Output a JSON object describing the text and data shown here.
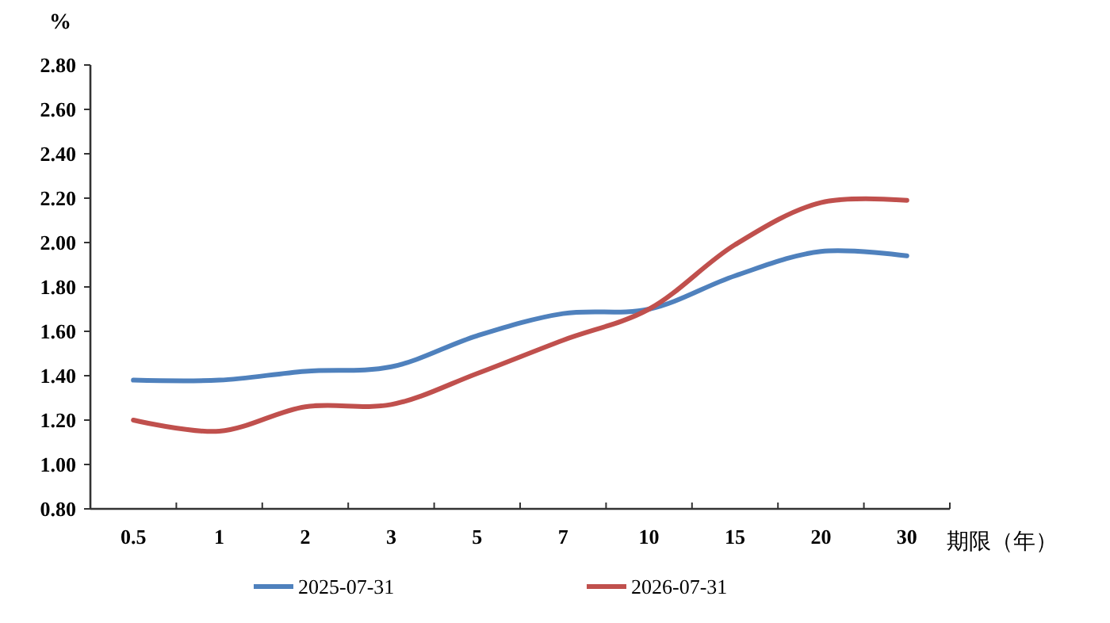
{
  "chart_data": {
    "type": "line",
    "ylabel": "%",
    "xlabel": "期限（年）",
    "categories": [
      "0.5",
      "1",
      "2",
      "3",
      "5",
      "7",
      "10",
      "15",
      "20",
      "30"
    ],
    "series": [
      {
        "name": "2025-07-31",
        "color": "#4f81bd",
        "values": [
          1.38,
          1.38,
          1.42,
          1.44,
          1.58,
          1.68,
          1.7,
          1.85,
          1.96,
          1.94
        ]
      },
      {
        "name": "2026-07-31",
        "color": "#c0504d",
        "values": [
          1.2,
          1.15,
          1.26,
          1.27,
          1.41,
          1.56,
          1.7,
          1.99,
          2.18,
          2.19
        ]
      }
    ],
    "ylim": [
      0.8,
      2.8
    ],
    "yticks": [
      {
        "value": 0.8,
        "label": "0.80"
      },
      {
        "value": 1.0,
        "label": "1.00"
      },
      {
        "value": 1.2,
        "label": "1.20"
      },
      {
        "value": 1.4,
        "label": "1.40"
      },
      {
        "value": 1.6,
        "label": "1.60"
      },
      {
        "value": 1.8,
        "label": "1.80"
      },
      {
        "value": 2.0,
        "label": "2.00"
      },
      {
        "value": 2.2,
        "label": "2.20"
      },
      {
        "value": 2.4,
        "label": "2.40"
      },
      {
        "value": 2.6,
        "label": "2.60"
      },
      {
        "value": 2.8,
        "label": "2.80"
      }
    ],
    "grid": false,
    "legend": "bottom",
    "marker": "none",
    "line_style": "solid"
  }
}
